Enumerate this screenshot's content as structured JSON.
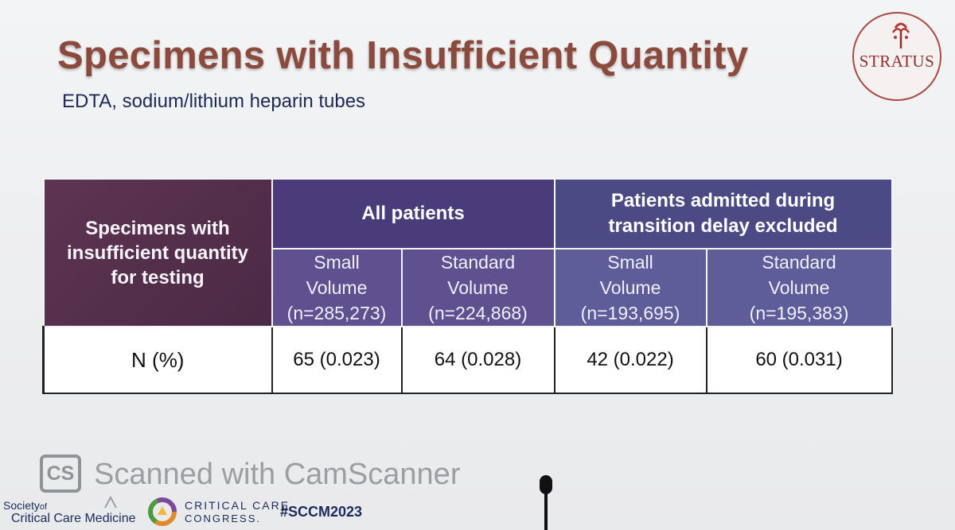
{
  "slide": {
    "title": "Specimens with Insufficient Quantity",
    "subtitle": "EDTA, sodium/lithium heparin tubes",
    "logo_text": "STRATUS"
  },
  "table": {
    "corner_lines": [
      "Specimens with",
      "insufficient quantity",
      "for testing"
    ],
    "group_all": "All patients",
    "group_excluded_lines": [
      "Patients admitted during",
      "transition delay excluded"
    ],
    "columns": [
      {
        "lines": [
          "Small",
          "Volume",
          "(n=285,273)"
        ]
      },
      {
        "lines": [
          "Standard",
          "Volume",
          "(n=224,868)"
        ]
      },
      {
        "lines": [
          "Small",
          "Volume",
          "(n=193,695)"
        ]
      },
      {
        "lines": [
          "Standard",
          "Volume",
          "(n=195,383)"
        ]
      }
    ],
    "row_label": "N (%)",
    "row_values": [
      "65 (0.023)",
      "64 (0.028)",
      "42 (0.022)",
      "60 (0.031)"
    ]
  },
  "watermark": {
    "icon_text": "CS",
    "text": "Scanned with CamScanner"
  },
  "footer": {
    "sccm_line1": "Society",
    "sccm_of": "of",
    "sccm_line2": "Critical Care Medicine",
    "congress_line1": "CRITICAL CARE",
    "congress_line2": "CONGRESS.",
    "hashtag": "#SCCM2023"
  }
}
